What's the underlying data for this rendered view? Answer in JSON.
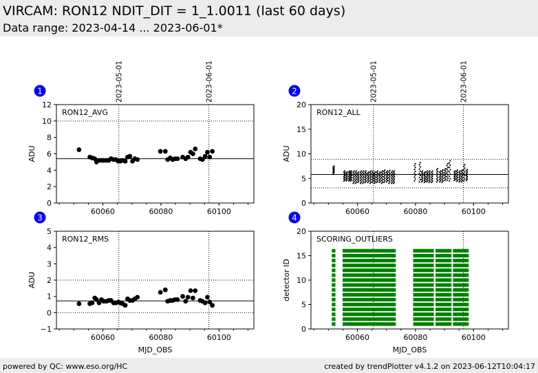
{
  "header": {
    "title": "VIRCAM: RON12 NDIT_DIT = 1_1.0011 (last 60 days)",
    "subtitle": "Data range: 2023-04-14 ... 2023-06-01*"
  },
  "footer": {
    "left": "powered by QC: www.eso.org/HC",
    "right": "created by trendPlotter v4.1.2 on 2023-06-12T10:04:17"
  },
  "colors": {
    "marker": "#000000",
    "scoring": "#008000",
    "badge": "#0000ff",
    "header_bg": "#ececec"
  },
  "chart_data": [
    {
      "type": "scatter",
      "panel": "1",
      "label": "RON12_AVG",
      "ylabel": "ADU",
      "xlabel": "",
      "xlim": [
        60044,
        60112
      ],
      "ylim": [
        0,
        12
      ],
      "xticks": [
        60060,
        60080,
        60100
      ],
      "yticks": [
        0,
        2,
        4,
        6,
        8,
        10,
        12
      ],
      "date_markers": [
        {
          "x": 60065.5,
          "label": "2023-05-01"
        },
        {
          "x": 60096.5,
          "label": "2023-06-01"
        }
      ],
      "ref_lines": [
        {
          "y": 5.4,
          "style": "solid"
        },
        {
          "y": 10.0,
          "style": "dotted"
        },
        {
          "y": 0.0,
          "style": "dotted"
        }
      ],
      "marker": "large",
      "points": [
        [
          60051.8,
          6.5
        ],
        [
          60055.5,
          5.6
        ],
        [
          60056.3,
          5.5
        ],
        [
          60057.2,
          5.4
        ],
        [
          60057.8,
          5.0
        ],
        [
          60058.7,
          5.2
        ],
        [
          60059.5,
          5.2
        ],
        [
          60060.3,
          5.2
        ],
        [
          60061.2,
          5.2
        ],
        [
          60062.0,
          5.2
        ],
        [
          60062.8,
          5.4
        ],
        [
          60063.7,
          5.3
        ],
        [
          60064.5,
          5.3
        ],
        [
          60065.3,
          5.1
        ],
        [
          60066.0,
          5.1
        ],
        [
          60066.8,
          5.2
        ],
        [
          60067.7,
          5.1
        ],
        [
          60068.5,
          5.6
        ],
        [
          60069.3,
          5.7
        ],
        [
          60070.2,
          5.1
        ],
        [
          60071.0,
          5.4
        ],
        [
          60071.9,
          5.3
        ],
        [
          60079.8,
          6.3
        ],
        [
          60081.5,
          6.3
        ],
        [
          60082.3,
          5.3
        ],
        [
          60083.2,
          5.5
        ],
        [
          60084.0,
          5.3
        ],
        [
          60084.8,
          5.4
        ],
        [
          60085.7,
          5.4
        ],
        [
          60087.5,
          5.6
        ],
        [
          60088.5,
          5.4
        ],
        [
          60089.3,
          5.6
        ],
        [
          60090.2,
          6.2
        ],
        [
          60091.0,
          6.0
        ],
        [
          60091.8,
          6.6
        ],
        [
          60093.5,
          5.4
        ],
        [
          60094.3,
          5.3
        ],
        [
          60095.2,
          5.7
        ],
        [
          60096.0,
          6.2
        ],
        [
          60096.8,
          5.6
        ],
        [
          60097.7,
          6.3
        ]
      ]
    },
    {
      "type": "scatter",
      "panel": "2",
      "label": "RON12_ALL",
      "ylabel": "ADU",
      "xlabel": "",
      "xlim": [
        60044,
        60112
      ],
      "ylim": [
        0,
        20
      ],
      "xticks": [
        60060,
        60080,
        60100
      ],
      "yticks": [
        0,
        5,
        10,
        15,
        20
      ],
      "date_markers": [
        {
          "x": 60065.5,
          "label": "2023-05-01"
        },
        {
          "x": 60096.5,
          "label": "2023-06-01"
        }
      ],
      "ref_lines": [
        {
          "y": 5.8,
          "style": "solid"
        },
        {
          "y": 8.9,
          "style": "dotted"
        },
        {
          "y": 3.1,
          "style": "dotted"
        }
      ],
      "marker": "small",
      "strip_x": [
        60051.8,
        60055.5,
        60056.3,
        60057.2,
        60057.8,
        60058.7,
        60059.5,
        60060.3,
        60061.2,
        60062.0,
        60062.8,
        60063.7,
        60064.5,
        60065.3,
        60066.0,
        60066.8,
        60067.7,
        60068.5,
        60069.3,
        60070.2,
        60071.0,
        60071.9,
        60072.6,
        60079.8,
        60081.5,
        60082.3,
        60083.2,
        60084.0,
        60084.8,
        60085.7,
        60087.5,
        60088.5,
        60089.3,
        60090.2,
        60091.0,
        60091.8,
        60093.5,
        60094.3,
        60095.2,
        60096.0,
        60096.8,
        60097.7
      ],
      "strip_ranges": [
        [
          6.0,
          7.5
        ],
        [
          4.5,
          6.5
        ],
        [
          4.5,
          6.3
        ],
        [
          4.5,
          6.5
        ],
        [
          4.5,
          6.5
        ],
        [
          4.0,
          6.5
        ],
        [
          4.0,
          6.5
        ],
        [
          4.2,
          6.3
        ],
        [
          4.0,
          6.5
        ],
        [
          4.0,
          6.5
        ],
        [
          4.2,
          6.5
        ],
        [
          4.2,
          6.3
        ],
        [
          4.0,
          6.5
        ],
        [
          4.2,
          6.5
        ],
        [
          4.0,
          6.3
        ],
        [
          4.2,
          6.5
        ],
        [
          4.2,
          6.3
        ],
        [
          4.0,
          6.5
        ],
        [
          4.2,
          6.7
        ],
        [
          4.3,
          6.5
        ],
        [
          4.0,
          6.6
        ],
        [
          4.0,
          6.5
        ],
        [
          4.0,
          6.5
        ],
        [
          4.5,
          8.0
        ],
        [
          4.3,
          8.2
        ],
        [
          4.3,
          6.5
        ],
        [
          4.2,
          6.3
        ],
        [
          4.3,
          6.5
        ],
        [
          4.2,
          6.5
        ],
        [
          4.2,
          6.5
        ],
        [
          4.3,
          7.0
        ],
        [
          4.3,
          6.5
        ],
        [
          4.2,
          6.7
        ],
        [
          4.6,
          7.0
        ],
        [
          4.6,
          8.0
        ],
        [
          4.5,
          8.6
        ],
        [
          4.6,
          6.5
        ],
        [
          4.4,
          6.7
        ],
        [
          4.3,
          6.5
        ],
        [
          4.3,
          6.7
        ],
        [
          4.5,
          7.8
        ],
        [
          4.6,
          6.8
        ]
      ]
    },
    {
      "type": "scatter",
      "panel": "3",
      "label": "RON12_RMS",
      "ylabel": "ADU",
      "xlabel": "MJD_OBS",
      "xlim": [
        60044,
        60112
      ],
      "ylim": [
        -1,
        5
      ],
      "xticks": [
        60060,
        60080,
        60100
      ],
      "yticks": [
        -1,
        0,
        1,
        2,
        3,
        4,
        5
      ],
      "date_markers": [
        {
          "x": 60065.5,
          "label": "2023-05-01"
        },
        {
          "x": 60096.5,
          "label": "2023-06-01"
        }
      ],
      "ref_lines": [
        {
          "y": 0.72,
          "style": "solid"
        },
        {
          "y": 2.0,
          "style": "dotted"
        },
        {
          "y": 0.0,
          "style": "dotted"
        }
      ],
      "marker": "large",
      "points": [
        [
          60051.8,
          0.55
        ],
        [
          60055.5,
          0.55
        ],
        [
          60056.3,
          0.6
        ],
        [
          60057.2,
          0.9
        ],
        [
          60057.8,
          0.8
        ],
        [
          60058.7,
          0.6
        ],
        [
          60059.5,
          0.8
        ],
        [
          60060.3,
          0.7
        ],
        [
          60061.2,
          0.7
        ],
        [
          60062.0,
          0.75
        ],
        [
          60062.8,
          0.75
        ],
        [
          60063.7,
          0.6
        ],
        [
          60064.5,
          0.6
        ],
        [
          60065.3,
          0.65
        ],
        [
          60066.0,
          0.6
        ],
        [
          60066.8,
          0.55
        ],
        [
          60067.7,
          0.45
        ],
        [
          60068.5,
          0.85
        ],
        [
          60069.3,
          0.75
        ],
        [
          60070.2,
          0.75
        ],
        [
          60071.0,
          0.85
        ],
        [
          60071.9,
          0.95
        ],
        [
          60079.8,
          1.25
        ],
        [
          60081.5,
          1.4
        ],
        [
          60082.3,
          0.7
        ],
        [
          60083.2,
          0.75
        ],
        [
          60084.0,
          0.75
        ],
        [
          60084.8,
          0.8
        ],
        [
          60085.7,
          0.8
        ],
        [
          60087.5,
          1.0
        ],
        [
          60088.5,
          0.7
        ],
        [
          60089.3,
          0.95
        ],
        [
          60090.2,
          1.35
        ],
        [
          60091.0,
          0.9
        ],
        [
          60091.8,
          1.35
        ],
        [
          60093.5,
          0.75
        ],
        [
          60094.3,
          0.7
        ],
        [
          60095.2,
          0.6
        ],
        [
          60096.0,
          0.95
        ],
        [
          60096.8,
          0.65
        ],
        [
          60097.7,
          0.45
        ]
      ]
    },
    {
      "type": "scatter",
      "panel": "4",
      "label": "SCORING_OUTLIERS",
      "ylabel": "detector ID",
      "xlabel": "MJD_OBS",
      "xlim": [
        60044,
        60112
      ],
      "ylim": [
        0,
        20
      ],
      "xticks": [
        60060,
        60080,
        60100
      ],
      "yticks": [
        0,
        5,
        10,
        15,
        20
      ],
      "date_markers": [
        {
          "x": 60065.5,
          "label": "2023-05-01"
        },
        {
          "x": 60096.5,
          "label": "2023-06-01"
        }
      ],
      "ref_lines": [],
      "marker": "square",
      "columns_x": [
        60051.8,
        60055.5,
        60056.3,
        60057.2,
        60057.8,
        60058.7,
        60059.5,
        60060.3,
        60061.2,
        60062.0,
        60062.8,
        60063.7,
        60064.5,
        60065.3,
        60066.0,
        60066.8,
        60067.7,
        60068.5,
        60069.3,
        60070.2,
        60071.0,
        60071.9,
        60072.6,
        60079.8,
        60080.6,
        60081.5,
        60082.3,
        60083.2,
        60084.0,
        60084.8,
        60085.7,
        60087.5,
        60088.5,
        60089.3,
        60090.2,
        60091.0,
        60091.8,
        60093.5,
        60094.3,
        60095.2,
        60096.0,
        60096.8,
        60097.7
      ],
      "detector_ids": [
        1,
        2,
        3,
        4,
        5,
        6,
        7,
        8,
        9,
        10,
        11,
        12,
        13,
        14,
        15,
        16
      ]
    }
  ]
}
